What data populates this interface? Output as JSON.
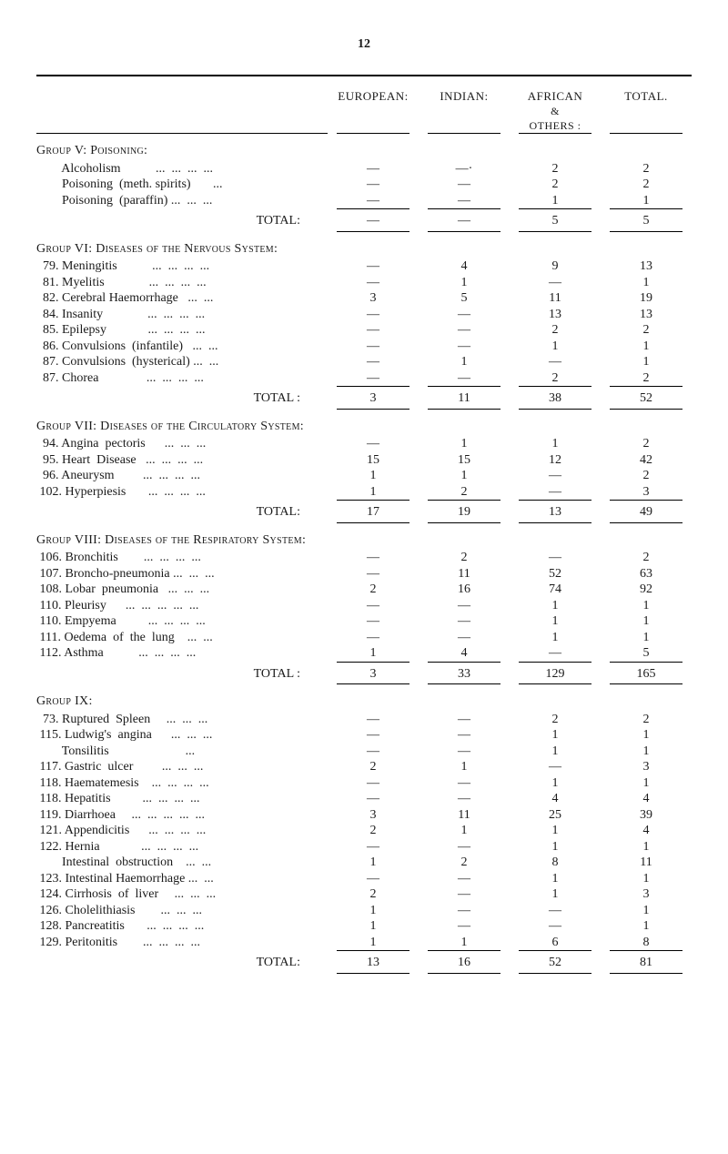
{
  "page_number": "12",
  "column_headers": {
    "european": "EUROPEAN:",
    "indian": "INDIAN:",
    "african": "AFRICAN",
    "african_sub1": "&",
    "african_sub2": "OTHERS :",
    "total": "TOTAL."
  },
  "groups": [
    {
      "title": "Group V:   Poisoning:",
      "rows": [
        {
          "label": "        Alcoholism           ...  ...  ...  ...",
          "e": "—",
          "i": "—·",
          "a": "2",
          "t": "2"
        },
        {
          "label": "        Poisoning  (meth. spirits)       ...",
          "e": "—",
          "i": "—",
          "a": "2",
          "t": "2"
        },
        {
          "label": "        Poisoning  (paraffin) ...  ...  ...",
          "e": "—",
          "i": "—",
          "a": "1",
          "t": "1"
        }
      ],
      "total": {
        "label": "TOTAL:",
        "e": "—",
        "i": "—",
        "a": "5",
        "t": "5"
      }
    },
    {
      "title": "Group VI:   Diseases of the Nervous System:",
      "rows": [
        {
          "label": "  79. Meningitis           ...  ...  ...  ...",
          "e": "—",
          "i": "4",
          "a": "9",
          "t": "13"
        },
        {
          "label": "  81. Myelitis              ...  ...  ...  ...",
          "e": "—",
          "i": "1",
          "a": "—",
          "t": "1"
        },
        {
          "label": "  82. Cerebral Haemorrhage   ...  ...",
          "e": "3",
          "i": "5",
          "a": "11",
          "t": "19"
        },
        {
          "label": "  84. Insanity              ...  ...  ...  ...",
          "e": "—",
          "i": "—",
          "a": "13",
          "t": "13"
        },
        {
          "label": "  85. Epilepsy             ...  ...  ...  ...",
          "e": "—",
          "i": "—",
          "a": "2",
          "t": "2"
        },
        {
          "label": "  86. Convulsions  (infantile)   ...  ...",
          "e": "—",
          "i": "—",
          "a": "1",
          "t": "1"
        },
        {
          "label": "  87. Convulsions  (hysterical) ...  ...",
          "e": "—",
          "i": "1",
          "a": "—",
          "t": "1"
        },
        {
          "label": "  87. Chorea               ...  ...  ...  ...",
          "e": "—",
          "i": "—",
          "a": "2",
          "t": "2"
        }
      ],
      "total": {
        "label": "TOTAL :",
        "e": "3",
        "i": "11",
        "a": "38",
        "t": "52"
      }
    },
    {
      "title": "Group VII:   Diseases of the Circulatory System:",
      "rows": [
        {
          "label": "  94. Angina  pectoris      ...  ...  ...",
          "e": "—",
          "i": "1",
          "a": "1",
          "t": "2"
        },
        {
          "label": "  95. Heart  Disease   ...  ...  ...  ...",
          "e": "15",
          "i": "15",
          "a": "12",
          "t": "42"
        },
        {
          "label": "  96. Aneurysm         ...  ...  ...  ...",
          "e": "1",
          "i": "1",
          "a": "—",
          "t": "2"
        },
        {
          "label": " 102. Hyperpiesis       ...  ...  ...  ...",
          "e": "1",
          "i": "2",
          "a": "—",
          "t": "3"
        }
      ],
      "total": {
        "label": "TOTAL:",
        "e": "17",
        "i": "19",
        "a": "13",
        "t": "49"
      }
    },
    {
      "title": "Group VIII:   Diseases of the Respiratory System:",
      "rows": [
        {
          "label": " 106. Bronchitis        ...  ...  ...  ...",
          "e": "—",
          "i": "2",
          "a": "—",
          "t": "2"
        },
        {
          "label": " 107. Broncho-pneumonia ...  ...  ...",
          "e": "—",
          "i": "11",
          "a": "52",
          "t": "63"
        },
        {
          "label": " 108. Lobar  pneumonia   ...  ...  ...",
          "e": "2",
          "i": "16",
          "a": "74",
          "t": "92"
        },
        {
          "label": " 110. Pleurisy      ...  ...  ...  ...  ...",
          "e": "—",
          "i": "—",
          "a": "1",
          "t": "1"
        },
        {
          "label": " 110. Empyema          ...  ...  ...  ...",
          "e": "—",
          "i": "—",
          "a": "1",
          "t": "1"
        },
        {
          "label": " 111. Oedema  of  the  lung    ...  ...",
          "e": "—",
          "i": "—",
          "a": "1",
          "t": "1"
        },
        {
          "label": " 112. Asthma           ...  ...  ...  ...",
          "e": "1",
          "i": "4",
          "a": "—",
          "t": "5"
        }
      ],
      "total": {
        "label": "TOTAL :",
        "e": "3",
        "i": "33",
        "a": "129",
        "t": "165"
      }
    },
    {
      "title": "Group IX:",
      "rows": [
        {
          "label": "  73. Ruptured  Spleen     ...  ...  ...",
          "e": "—",
          "i": "—",
          "a": "2",
          "t": "2"
        },
        {
          "label": " 115. Ludwig's  angina      ...  ...  ...",
          "e": "—",
          "i": "—",
          "a": "1",
          "t": "1"
        },
        {
          "label": "        Tonsilitis                        ...",
          "e": "—",
          "i": "—",
          "a": "1",
          "t": "1"
        },
        {
          "label": " 117. Gastric  ulcer         ...  ...  ...",
          "e": "2",
          "i": "1",
          "a": "—",
          "t": "3"
        },
        {
          "label": " 118. Haematemesis    ...  ...  ...  ...",
          "e": "—",
          "i": "—",
          "a": "1",
          "t": "1"
        },
        {
          "label": " 118. Hepatitis          ...  ...  ...  ...",
          "e": "—",
          "i": "—",
          "a": "4",
          "t": "4"
        },
        {
          "label": " 119. Diarrhoea     ...  ...  ...  ...  ...",
          "e": "3",
          "i": "11",
          "a": "25",
          "t": "39"
        },
        {
          "label": " 121. Appendicitis      ...  ...  ...  ...",
          "e": "2",
          "i": "1",
          "a": "1",
          "t": "4"
        },
        {
          "label": " 122. Hernia             ...  ...  ...  ...",
          "e": "—",
          "i": "—",
          "a": "1",
          "t": "1"
        },
        {
          "label": "        Intestinal  obstruction    ...  ...",
          "e": "1",
          "i": "2",
          "a": "8",
          "t": "11"
        },
        {
          "label": " 123. Intestinal Haemorrhage ...  ...",
          "e": "—",
          "i": "—",
          "a": "1",
          "t": "1"
        },
        {
          "label": " 124. Cirrhosis  of  liver     ...  ...  ...",
          "e": "2",
          "i": "—",
          "a": "1",
          "t": "3"
        },
        {
          "label": " 126. Cholelithiasis        ...  ...  ...",
          "e": "1",
          "i": "—",
          "a": "—",
          "t": "1"
        },
        {
          "label": " 128. Pancreatitis       ...  ...  ...  ...",
          "e": "1",
          "i": "—",
          "a": "—",
          "t": "1"
        },
        {
          "label": " 129. Peritonitis        ...  ...  ...  ...",
          "e": "1",
          "i": "1",
          "a": "6",
          "t": "8"
        }
      ],
      "total": {
        "label": "TOTAL:",
        "e": "13",
        "i": "16",
        "a": "52",
        "t": "81"
      }
    }
  ]
}
